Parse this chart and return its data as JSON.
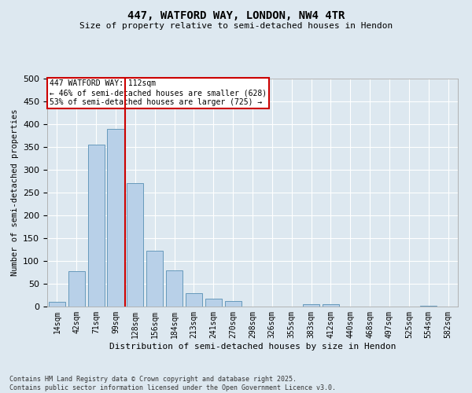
{
  "title": "447, WATFORD WAY, LONDON, NW4 4TR",
  "subtitle": "Size of property relative to semi-detached houses in Hendon",
  "xlabel": "Distribution of semi-detached houses by size in Hendon",
  "ylabel": "Number of semi-detached properties",
  "categories": [
    "14sqm",
    "42sqm",
    "71sqm",
    "99sqm",
    "128sqm",
    "156sqm",
    "184sqm",
    "213sqm",
    "241sqm",
    "270sqm",
    "298sqm",
    "326sqm",
    "355sqm",
    "383sqm",
    "412sqm",
    "440sqm",
    "468sqm",
    "497sqm",
    "525sqm",
    "554sqm",
    "582sqm"
  ],
  "values": [
    10,
    78,
    355,
    390,
    270,
    122,
    80,
    30,
    17,
    12,
    0,
    0,
    0,
    5,
    5,
    0,
    0,
    0,
    0,
    2,
    0
  ],
  "bar_color": "#b8d0e8",
  "bar_edge_color": "#6699bb",
  "vline_color": "#cc0000",
  "vline_x_index": 3,
  "annotation_title": "447 WATFORD WAY: 112sqm",
  "annotation_line1": "← 46% of semi-detached houses are smaller (628)",
  "annotation_line2": "53% of semi-detached houses are larger (725) →",
  "annotation_box_color": "#ffffff",
  "annotation_box_edge": "#cc0000",
  "footer1": "Contains HM Land Registry data © Crown copyright and database right 2025.",
  "footer2": "Contains public sector information licensed under the Open Government Licence v3.0.",
  "bg_color": "#dde8f0",
  "plot_bg_color": "#dde8f0",
  "ylim": [
    0,
    500
  ],
  "yticks": [
    0,
    50,
    100,
    150,
    200,
    250,
    300,
    350,
    400,
    450,
    500
  ],
  "title_fontsize": 10,
  "subtitle_fontsize": 8,
  "ylabel_fontsize": 7.5,
  "xlabel_fontsize": 8,
  "ytick_fontsize": 8,
  "xtick_fontsize": 7
}
